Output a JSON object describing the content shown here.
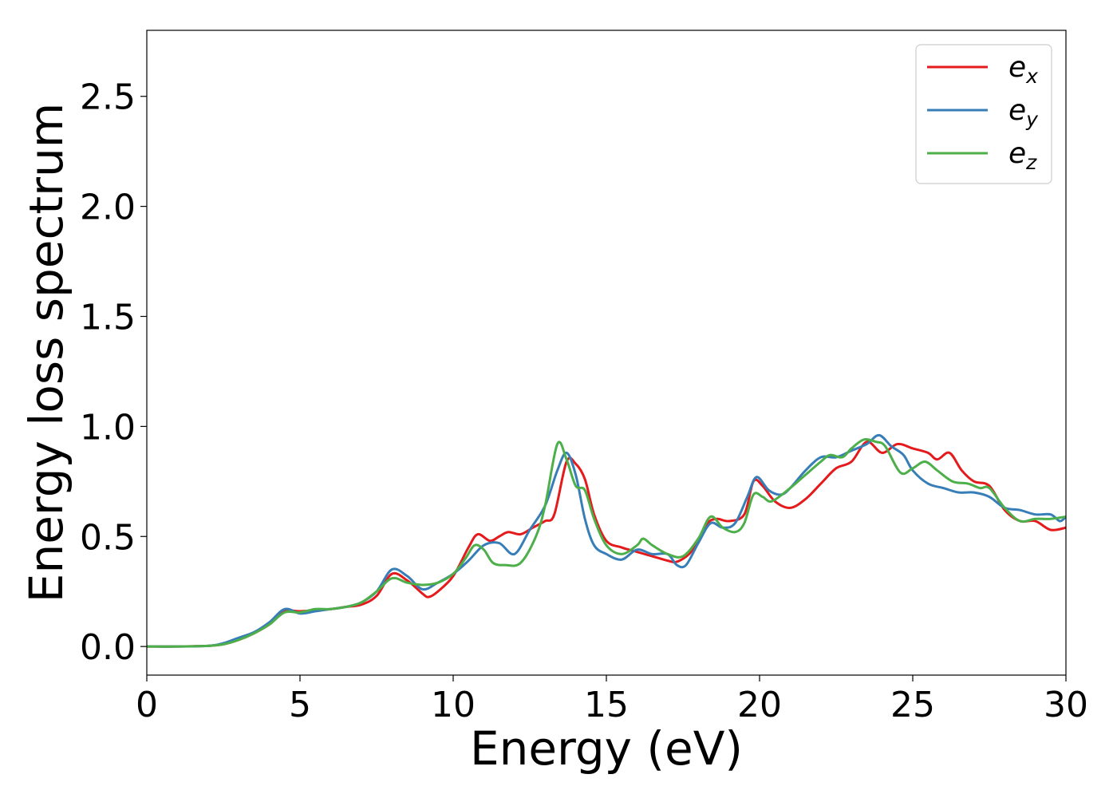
{
  "chart_data": {
    "type": "line",
    "title": "",
    "xlabel": "Energy (eV)",
    "ylabel": "Energy loss spectrum",
    "xlim": [
      0,
      30
    ],
    "ylim": [
      -0.13,
      2.8
    ],
    "xticks": [
      0,
      5,
      10,
      15,
      20,
      25,
      30
    ],
    "xtick_labels": [
      "0",
      "5",
      "10",
      "15",
      "20",
      "25",
      "30"
    ],
    "yticks": [
      0.0,
      0.5,
      1.0,
      1.5,
      2.0,
      2.5
    ],
    "ytick_labels": [
      "0.0",
      "0.5",
      "1.0",
      "1.5",
      "2.0",
      "2.5"
    ],
    "grid": false,
    "legend_position": "top-right",
    "series": [
      {
        "name": "e_x",
        "legend_base": "e",
        "legend_sub": "x",
        "color": "#e41a1c",
        "points": [
          [
            0,
            0.0
          ],
          [
            1,
            0.0
          ],
          [
            2,
            0.003
          ],
          [
            2.5,
            0.01
          ],
          [
            3,
            0.03
          ],
          [
            3.5,
            0.06
          ],
          [
            4,
            0.1
          ],
          [
            4.5,
            0.16
          ],
          [
            5,
            0.16
          ],
          [
            5.5,
            0.165
          ],
          [
            6,
            0.17
          ],
          [
            6.5,
            0.18
          ],
          [
            7,
            0.19
          ],
          [
            7.5,
            0.23
          ],
          [
            8,
            0.33
          ],
          [
            8.5,
            0.3
          ],
          [
            9,
            0.24
          ],
          [
            9.2,
            0.225
          ],
          [
            9.5,
            0.25
          ],
          [
            10,
            0.32
          ],
          [
            10.5,
            0.45
          ],
          [
            10.8,
            0.51
          ],
          [
            11.2,
            0.48
          ],
          [
            11.5,
            0.5
          ],
          [
            11.8,
            0.52
          ],
          [
            12.2,
            0.51
          ],
          [
            12.6,
            0.54
          ],
          [
            13,
            0.57
          ],
          [
            13.3,
            0.6
          ],
          [
            13.7,
            0.84
          ],
          [
            14,
            0.83
          ],
          [
            14.3,
            0.76
          ],
          [
            14.6,
            0.6
          ],
          [
            15,
            0.48
          ],
          [
            15.5,
            0.45
          ],
          [
            16,
            0.43
          ],
          [
            16.5,
            0.41
          ],
          [
            17,
            0.39
          ],
          [
            17.3,
            0.385
          ],
          [
            17.7,
            0.42
          ],
          [
            18,
            0.48
          ],
          [
            18.3,
            0.56
          ],
          [
            18.6,
            0.58
          ],
          [
            19,
            0.57
          ],
          [
            19.5,
            0.6
          ],
          [
            19.8,
            0.75
          ],
          [
            20.1,
            0.73
          ],
          [
            20.5,
            0.66
          ],
          [
            21,
            0.63
          ],
          [
            21.5,
            0.67
          ],
          [
            22,
            0.74
          ],
          [
            22.5,
            0.81
          ],
          [
            23,
            0.84
          ],
          [
            23.5,
            0.93
          ],
          [
            24,
            0.88
          ],
          [
            24.5,
            0.92
          ],
          [
            25,
            0.9
          ],
          [
            25.5,
            0.88
          ],
          [
            25.8,
            0.85
          ],
          [
            26.2,
            0.88
          ],
          [
            26.6,
            0.8
          ],
          [
            27,
            0.75
          ],
          [
            27.5,
            0.73
          ],
          [
            28,
            0.62
          ],
          [
            28.5,
            0.57
          ],
          [
            29,
            0.57
          ],
          [
            29.5,
            0.53
          ],
          [
            30,
            0.54
          ]
        ]
      },
      {
        "name": "e_y",
        "legend_base": "e",
        "legend_sub": "y",
        "color": "#377eb8",
        "points": [
          [
            0,
            0.0
          ],
          [
            1,
            0.0
          ],
          [
            2,
            0.003
          ],
          [
            2.5,
            0.015
          ],
          [
            3,
            0.04
          ],
          [
            3.5,
            0.065
          ],
          [
            4,
            0.11
          ],
          [
            4.5,
            0.17
          ],
          [
            5,
            0.15
          ],
          [
            5.5,
            0.16
          ],
          [
            6,
            0.17
          ],
          [
            6.5,
            0.18
          ],
          [
            7,
            0.2
          ],
          [
            7.5,
            0.25
          ],
          [
            8,
            0.35
          ],
          [
            8.5,
            0.32
          ],
          [
            9,
            0.26
          ],
          [
            9.5,
            0.29
          ],
          [
            10,
            0.33
          ],
          [
            10.5,
            0.39
          ],
          [
            11,
            0.46
          ],
          [
            11.5,
            0.47
          ],
          [
            12,
            0.42
          ],
          [
            12.5,
            0.53
          ],
          [
            13,
            0.64
          ],
          [
            13.4,
            0.8
          ],
          [
            13.7,
            0.88
          ],
          [
            14,
            0.78
          ],
          [
            14.3,
            0.58
          ],
          [
            14.6,
            0.46
          ],
          [
            15,
            0.42
          ],
          [
            15.5,
            0.395
          ],
          [
            16,
            0.44
          ],
          [
            16.5,
            0.42
          ],
          [
            17,
            0.42
          ],
          [
            17.3,
            0.37
          ],
          [
            17.6,
            0.37
          ],
          [
            18,
            0.47
          ],
          [
            18.4,
            0.56
          ],
          [
            18.8,
            0.54
          ],
          [
            19.2,
            0.56
          ],
          [
            19.6,
            0.68
          ],
          [
            19.9,
            0.77
          ],
          [
            20.3,
            0.71
          ],
          [
            20.7,
            0.69
          ],
          [
            21,
            0.72
          ],
          [
            21.5,
            0.8
          ],
          [
            22,
            0.86
          ],
          [
            22.5,
            0.86
          ],
          [
            23,
            0.89
          ],
          [
            23.5,
            0.92
          ],
          [
            23.9,
            0.96
          ],
          [
            24.3,
            0.91
          ],
          [
            24.7,
            0.87
          ],
          [
            25,
            0.8
          ],
          [
            25.5,
            0.74
          ],
          [
            26,
            0.72
          ],
          [
            26.5,
            0.7
          ],
          [
            27,
            0.7
          ],
          [
            27.5,
            0.68
          ],
          [
            28,
            0.63
          ],
          [
            28.5,
            0.62
          ],
          [
            29,
            0.6
          ],
          [
            29.5,
            0.6
          ],
          [
            29.8,
            0.57
          ],
          [
            30,
            0.59
          ]
        ]
      },
      {
        "name": "e_z",
        "legend_base": "e",
        "legend_sub": "z",
        "color": "#4daf4a",
        "points": [
          [
            0,
            0.0
          ],
          [
            1,
            0.0
          ],
          [
            2,
            0.003
          ],
          [
            2.5,
            0.01
          ],
          [
            3,
            0.03
          ],
          [
            3.5,
            0.06
          ],
          [
            4,
            0.1
          ],
          [
            4.5,
            0.155
          ],
          [
            5,
            0.155
          ],
          [
            5.5,
            0.17
          ],
          [
            6,
            0.17
          ],
          [
            6.5,
            0.18
          ],
          [
            7,
            0.2
          ],
          [
            7.5,
            0.25
          ],
          [
            8,
            0.31
          ],
          [
            8.5,
            0.29
          ],
          [
            9,
            0.28
          ],
          [
            9.5,
            0.29
          ],
          [
            10,
            0.33
          ],
          [
            10.4,
            0.4
          ],
          [
            10.7,
            0.46
          ],
          [
            11,
            0.44
          ],
          [
            11.3,
            0.38
          ],
          [
            11.7,
            0.37
          ],
          [
            12.2,
            0.38
          ],
          [
            12.7,
            0.5
          ],
          [
            13,
            0.64
          ],
          [
            13.4,
            0.92
          ],
          [
            13.7,
            0.85
          ],
          [
            14,
            0.73
          ],
          [
            14.3,
            0.71
          ],
          [
            14.6,
            0.58
          ],
          [
            15,
            0.46
          ],
          [
            15.5,
            0.42
          ],
          [
            16,
            0.46
          ],
          [
            16.2,
            0.49
          ],
          [
            16.5,
            0.46
          ],
          [
            17,
            0.42
          ],
          [
            17.5,
            0.41
          ],
          [
            18,
            0.49
          ],
          [
            18.4,
            0.59
          ],
          [
            18.8,
            0.54
          ],
          [
            19.2,
            0.52
          ],
          [
            19.5,
            0.56
          ],
          [
            19.8,
            0.69
          ],
          [
            20.1,
            0.68
          ],
          [
            20.4,
            0.66
          ],
          [
            21,
            0.72
          ],
          [
            21.5,
            0.78
          ],
          [
            22,
            0.84
          ],
          [
            22.3,
            0.87
          ],
          [
            22.7,
            0.86
          ],
          [
            23,
            0.9
          ],
          [
            23.4,
            0.94
          ],
          [
            23.8,
            0.93
          ],
          [
            24.1,
            0.91
          ],
          [
            24.6,
            0.79
          ],
          [
            25,
            0.81
          ],
          [
            25.4,
            0.84
          ],
          [
            25.8,
            0.8
          ],
          [
            26.3,
            0.75
          ],
          [
            26.8,
            0.74
          ],
          [
            27.2,
            0.72
          ],
          [
            27.5,
            0.72
          ],
          [
            28,
            0.63
          ],
          [
            28.5,
            0.57
          ],
          [
            29,
            0.58
          ],
          [
            29.5,
            0.58
          ],
          [
            30,
            0.59
          ]
        ]
      }
    ]
  }
}
